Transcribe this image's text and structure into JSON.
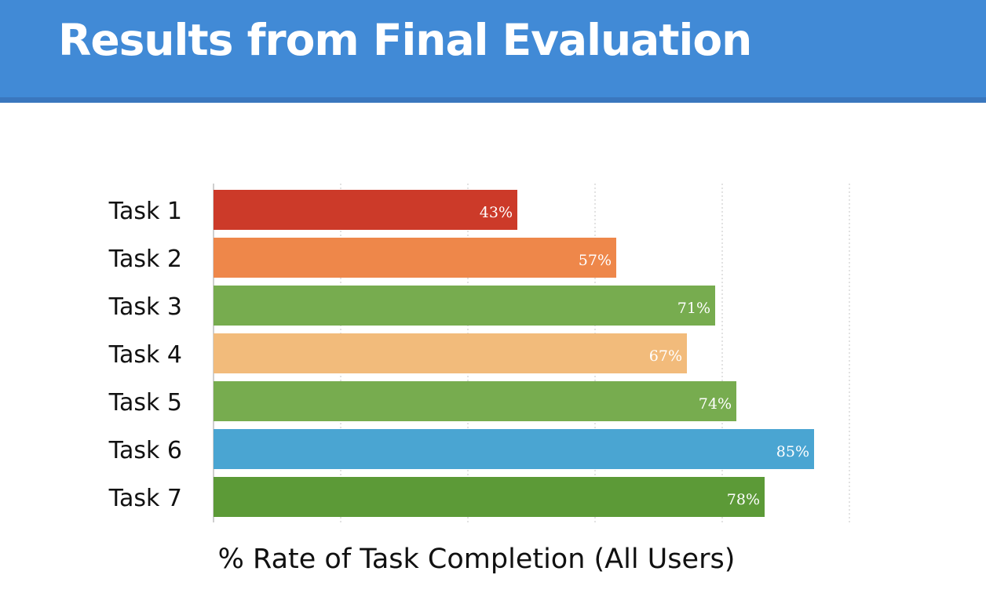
{
  "slide": {
    "title": "Results from Final Evaluation"
  },
  "chart_data": {
    "type": "bar",
    "orientation": "horizontal",
    "categories": [
      "Task 1",
      "Task 2",
      "Task 3",
      "Task 4",
      "Task 5",
      "Task 6",
      "Task 7"
    ],
    "values": [
      43,
      57,
      71,
      67,
      74,
      85,
      78
    ],
    "value_labels": [
      "43%",
      "57%",
      "71%",
      "67%",
      "74%",
      "85%",
      "78%"
    ],
    "colors": [
      "#cc3a29",
      "#ee874a",
      "#77ac4f",
      "#f2bb7b",
      "#77ac4f",
      "#4aa5d2",
      "#5c9a37"
    ],
    "xlabel": "% Rate of Task Completion (All Users)",
    "ylabel": "",
    "xlim": [
      0,
      90
    ],
    "vertical_grid": true,
    "legend": "none"
  }
}
